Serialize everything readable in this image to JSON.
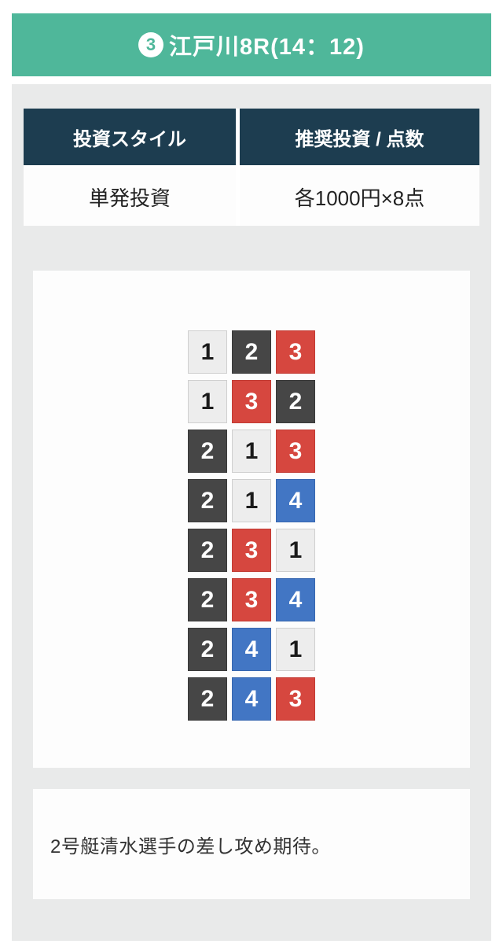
{
  "theme": {
    "accent_green": "#4fb79a",
    "table_header_navy": "#1d3d50",
    "section_gray": "#e9eaea"
  },
  "header": {
    "race_number": "3",
    "title": "江戸川8R(14：12)"
  },
  "table": {
    "columns": [
      {
        "header": "投資スタイル",
        "value": "単発投資"
      },
      {
        "header": "推奨投資 / 点数",
        "value": "各1000円×8点"
      }
    ]
  },
  "grid": {
    "rows": [
      [
        1,
        2,
        3
      ],
      [
        1,
        3,
        2
      ],
      [
        2,
        1,
        3
      ],
      [
        2,
        1,
        4
      ],
      [
        2,
        3,
        1
      ],
      [
        2,
        3,
        4
      ],
      [
        2,
        4,
        1
      ],
      [
        2,
        4,
        3
      ]
    ],
    "boat_styles": {
      "1": {
        "bg": "#ededed",
        "border": "#cfcfcf",
        "text": "#1a1a1a"
      },
      "2": {
        "bg": "#464646",
        "border": "#3a3a3a",
        "text": "#ffffff"
      },
      "3": {
        "bg": "#d6473f",
        "border": "#c23b34",
        "text": "#ffffff"
      },
      "4": {
        "bg": "#4276c4",
        "border": "#3767b0",
        "text": "#ffffff"
      }
    }
  },
  "comment": {
    "text": "2号艇清水選手の差し攻め期待。"
  }
}
